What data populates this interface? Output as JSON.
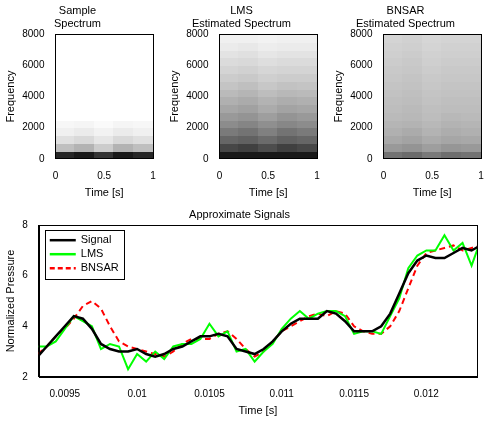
{
  "chart_data": [
    {
      "type": "heatmap",
      "title": "Sample Spectrum",
      "x_label": "Time [s]",
      "y_label": "Frequency",
      "xlim": [
        0,
        1
      ],
      "xticks": [
        0,
        0.5,
        1
      ],
      "ylim": [
        0,
        8000
      ],
      "yticks": [
        0,
        2000,
        4000,
        6000,
        8000
      ],
      "grid": false,
      "color": "#000000",
      "x_bins": [
        0,
        0.2,
        0.4,
        0.6,
        0.8,
        1
      ],
      "y_bins": [
        0,
        500,
        1000,
        1500,
        2000,
        2500,
        3000,
        3500,
        4000,
        4500,
        5000,
        5500,
        6000,
        6500,
        7000,
        7500,
        8000
      ],
      "cells": [
        [
          0.85,
          0.9,
          0.8,
          0.9,
          0.85
        ],
        [
          0.25,
          0.3,
          0.2,
          0.3,
          0.25
        ],
        [
          0.12,
          0.15,
          0.1,
          0.15,
          0.12
        ],
        [
          0.06,
          0.08,
          0.05,
          0.08,
          0.06
        ],
        [
          0.03,
          0.04,
          0.02,
          0.04,
          0.03
        ],
        [
          0,
          0,
          0,
          0,
          0
        ],
        [
          0,
          0,
          0,
          0,
          0
        ],
        [
          0,
          0,
          0,
          0,
          0
        ],
        [
          0,
          0,
          0,
          0,
          0
        ],
        [
          0,
          0,
          0,
          0,
          0
        ],
        [
          0,
          0,
          0,
          0,
          0
        ],
        [
          0,
          0,
          0,
          0,
          0
        ],
        [
          0,
          0,
          0,
          0,
          0
        ],
        [
          0,
          0,
          0,
          0,
          0
        ],
        [
          0,
          0,
          0,
          0,
          0
        ],
        [
          0,
          0,
          0,
          0,
          0
        ]
      ]
    },
    {
      "type": "heatmap",
      "title": "LMS Estimated Spectrum",
      "x_label": "Time [s]",
      "y_label": "Frequency",
      "xlim": [
        0,
        1
      ],
      "xticks": [
        0,
        0.5,
        1
      ],
      "ylim": [
        0,
        8000
      ],
      "yticks": [
        0,
        2000,
        4000,
        6000,
        8000
      ],
      "grid": false,
      "color": "#000000",
      "x_bins": [
        0,
        0.2,
        0.4,
        0.6,
        0.8,
        1
      ],
      "y_bins": [
        0,
        500,
        1000,
        1500,
        2000,
        2500,
        3000,
        3500,
        4000,
        4500,
        5000,
        5500,
        6000,
        6500,
        7000,
        7500,
        8000
      ],
      "cells": [
        [
          0.9,
          0.9,
          0.9,
          0.9,
          0.9
        ],
        [
          0.72,
          0.75,
          0.7,
          0.75,
          0.72
        ],
        [
          0.6,
          0.62,
          0.58,
          0.62,
          0.6
        ],
        [
          0.52,
          0.55,
          0.5,
          0.55,
          0.52
        ],
        [
          0.45,
          0.48,
          0.44,
          0.47,
          0.45
        ],
        [
          0.4,
          0.42,
          0.38,
          0.42,
          0.4
        ],
        [
          0.35,
          0.37,
          0.33,
          0.36,
          0.35
        ],
        [
          0.31,
          0.33,
          0.3,
          0.32,
          0.31
        ],
        [
          0.27,
          0.29,
          0.26,
          0.28,
          0.27
        ],
        [
          0.23,
          0.25,
          0.22,
          0.24,
          0.23
        ],
        [
          0.2,
          0.21,
          0.19,
          0.2,
          0.2
        ],
        [
          0.17,
          0.18,
          0.16,
          0.17,
          0.17
        ],
        [
          0.14,
          0.15,
          0.13,
          0.14,
          0.14
        ],
        [
          0.11,
          0.12,
          0.1,
          0.11,
          0.11
        ],
        [
          0.08,
          0.09,
          0.07,
          0.08,
          0.08
        ],
        [
          0.06,
          0.06,
          0.05,
          0.06,
          0.06
        ]
      ]
    },
    {
      "type": "heatmap",
      "title": "BNSAR Estimated Spectrum",
      "x_label": "Time [s]",
      "y_label": "Frequency",
      "xlim": [
        0,
        1
      ],
      "xticks": [
        0,
        0.5,
        1
      ],
      "ylim": [
        0,
        8000
      ],
      "yticks": [
        0,
        2000,
        4000,
        6000,
        8000
      ],
      "grid": false,
      "color": "#000000",
      "x_bins": [
        0,
        0.2,
        0.4,
        0.6,
        0.8,
        1
      ],
      "y_bins": [
        0,
        500,
        1000,
        1500,
        2000,
        2500,
        3000,
        3500,
        4000,
        4500,
        5000,
        5500,
        6000,
        6500,
        7000,
        7500,
        8000
      ],
      "cells": [
        [
          0.55,
          0.58,
          0.52,
          0.57,
          0.55
        ],
        [
          0.4,
          0.42,
          0.38,
          0.41,
          0.4
        ],
        [
          0.34,
          0.36,
          0.33,
          0.35,
          0.34
        ],
        [
          0.31,
          0.33,
          0.3,
          0.32,
          0.31
        ],
        [
          0.29,
          0.3,
          0.28,
          0.3,
          0.29
        ],
        [
          0.27,
          0.28,
          0.26,
          0.28,
          0.27
        ],
        [
          0.26,
          0.27,
          0.25,
          0.26,
          0.26
        ],
        [
          0.25,
          0.26,
          0.24,
          0.25,
          0.25
        ],
        [
          0.24,
          0.25,
          0.23,
          0.24,
          0.24
        ],
        [
          0.23,
          0.24,
          0.22,
          0.23,
          0.23
        ],
        [
          0.22,
          0.23,
          0.21,
          0.22,
          0.22
        ],
        [
          0.21,
          0.22,
          0.2,
          0.21,
          0.21
        ],
        [
          0.2,
          0.21,
          0.19,
          0.2,
          0.2
        ],
        [
          0.19,
          0.2,
          0.18,
          0.19,
          0.19
        ],
        [
          0.18,
          0.19,
          0.17,
          0.18,
          0.18
        ],
        [
          0.17,
          0.18,
          0.16,
          0.17,
          0.17
        ]
      ]
    },
    {
      "type": "line",
      "title": "Approximate Signals",
      "x_label": "Time [s]",
      "y_label": "Normalized Pressure",
      "xlim": [
        0.00932,
        0.01235
      ],
      "xticks": [
        0.0095,
        0.01,
        0.0105,
        0.011,
        0.0115,
        0.012
      ],
      "ylim": [
        2,
        8
      ],
      "yticks": [
        2,
        4,
        6,
        8
      ],
      "grid": false,
      "legend": "upper left",
      "x": [
        0.0093125,
        0.009375,
        0.0094375,
        0.0095,
        0.0095625,
        0.009625,
        0.0096875,
        0.00975,
        0.0098125,
        0.009875,
        0.0099375,
        0.01,
        0.0100625,
        0.010125,
        0.0101875,
        0.01025,
        0.0103125,
        0.010375,
        0.0104375,
        0.0105,
        0.0105625,
        0.010625,
        0.0106875,
        0.01075,
        0.0108125,
        0.010875,
        0.0109375,
        0.011,
        0.0110625,
        0.011125,
        0.0111875,
        0.01125,
        0.0113125,
        0.011375,
        0.0114375,
        0.0115,
        0.0115625,
        0.011625,
        0.0116875,
        0.01175,
        0.0118125,
        0.011875,
        0.0119375,
        0.012,
        0.0120625,
        0.012125,
        0.0121875,
        0.01225,
        0.0123125,
        0.012375
      ],
      "series": [
        {
          "name": "Signal",
          "color": "#000000",
          "line_style": "solid",
          "values": [
            2.8,
            3.2,
            3.6,
            4.0,
            4.4,
            4.3,
            3.9,
            3.3,
            3.1,
            3.0,
            3.0,
            3.1,
            2.9,
            2.8,
            2.9,
            3.1,
            3.2,
            3.4,
            3.6,
            3.6,
            3.7,
            3.6,
            3.1,
            3.0,
            2.9,
            3.1,
            3.4,
            3.8,
            4.1,
            4.3,
            4.3,
            4.3,
            4.6,
            4.5,
            4.2,
            3.8,
            3.8,
            3.8,
            4.0,
            4.5,
            5.3,
            6.1,
            6.6,
            6.8,
            6.7,
            6.7,
            6.9,
            7.1,
            7.0,
            7.2
          ]
        },
        {
          "name": "LMS",
          "color": "#00ff00",
          "line_style": "solid",
          "values": [
            3.2,
            3.2,
            3.4,
            3.9,
            4.4,
            4.2,
            4.0,
            3.1,
            3.3,
            3.2,
            2.3,
            2.9,
            2.6,
            3.0,
            2.7,
            3.2,
            3.3,
            3.3,
            3.5,
            4.1,
            3.6,
            3.8,
            3.0,
            3.1,
            2.6,
            3.0,
            3.3,
            3.9,
            4.3,
            4.6,
            4.3,
            4.5,
            4.6,
            4.6,
            4.4,
            3.7,
            3.8,
            3.8,
            3.7,
            4.4,
            5.1,
            6.3,
            6.8,
            7.0,
            7.0,
            7.6,
            7.0,
            7.3,
            6.4,
            7.4
          ]
        },
        {
          "name": "BNSAR",
          "color": "#ff0000",
          "line_style": "dashed",
          "values": [
            2.9,
            3.2,
            3.6,
            3.9,
            4.3,
            4.8,
            5.0,
            4.7,
            4.0,
            3.4,
            3.2,
            3.1,
            3.0,
            2.9,
            2.8,
            3.0,
            3.3,
            3.5,
            3.5,
            3.5,
            3.7,
            3.8,
            3.5,
            3.1,
            2.8,
            3.0,
            3.4,
            3.8,
            4.0,
            4.2,
            4.4,
            4.5,
            4.4,
            4.6,
            4.5,
            4.0,
            3.8,
            3.7,
            3.7,
            4.0,
            4.6,
            5.5,
            6.4,
            6.9,
            7.0,
            7.1,
            7.2,
            7.0,
            7.1,
            7.2
          ]
        }
      ]
    }
  ]
}
